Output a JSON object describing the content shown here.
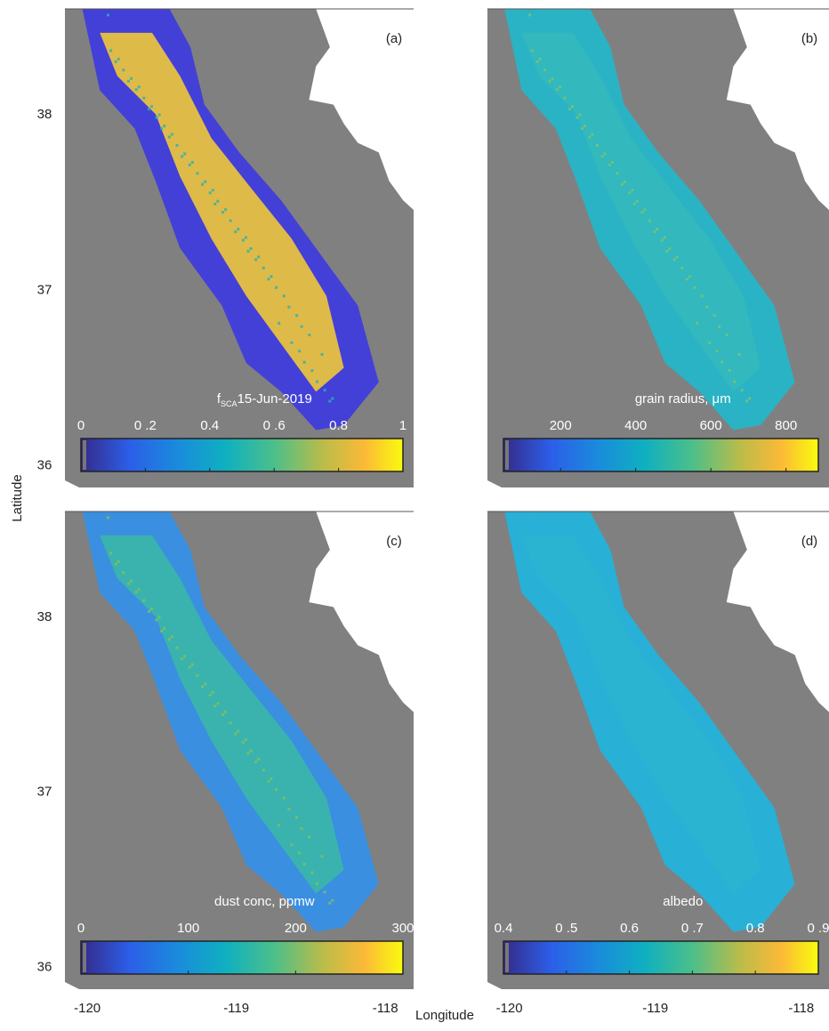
{
  "axes": {
    "x_label": "Longitude",
    "y_label": "Latitude",
    "xlim": [
      -120.15,
      -117.81
    ],
    "ylim": [
      35.87,
      38.6
    ],
    "xticks": [
      -120,
      -119,
      -118
    ],
    "yticks": [
      36,
      37,
      38
    ]
  },
  "panels": [
    {
      "label": "(a)",
      "colorbar": {
        "title": "f",
        "title_subscript": "SCA",
        "title_suffix": "15-Jun-2019",
        "lim": [
          0,
          1
        ],
        "ticks": [
          0,
          {
            "value": 0.2,
            "label": "0 .2"
          },
          0.4,
          {
            "value": 0.6,
            "label": "0 .6"
          },
          0.8,
          1
        ]
      }
    },
    {
      "label": "(b)",
      "colorbar": {
        "title": "grain radius,  μm",
        "lim": [
          48,
          886
        ],
        "ticks": [
          200,
          400,
          600,
          800
        ]
      }
    },
    {
      "label": "(c)",
      "colorbar": {
        "title": "dust conc, ppmw",
        "lim": [
          0,
          300
        ],
        "ticks": [
          0,
          100,
          200,
          300
        ]
      }
    },
    {
      "label": "(d)",
      "colorbar": {
        "title": "albedo",
        "lim": [
          0.4,
          0.9
        ],
        "ticks": [
          0.4,
          {
            "value": 0.5,
            "label": "0 .5"
          },
          0.6,
          {
            "value": 0.7,
            "label": "0 .7"
          },
          0.8,
          {
            "value": 0.9,
            "label": "0 .9"
          }
        ]
      }
    }
  ]
}
